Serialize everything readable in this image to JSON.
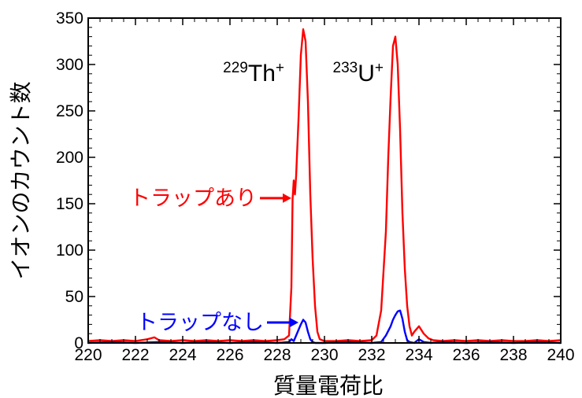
{
  "chart_data": {
    "type": "line",
    "title": "",
    "xlabel": "質量電荷比",
    "ylabel": "イオンのカウント数",
    "xlim": [
      220,
      240
    ],
    "ylim": [
      0,
      350
    ],
    "xticks": [
      "220",
      "222",
      "224",
      "226",
      "228",
      "230",
      "232",
      "234",
      "236",
      "238",
      "240"
    ],
    "yticks": [
      "0",
      "50",
      "100",
      "150",
      "200",
      "250",
      "300",
      "350"
    ],
    "grid": false,
    "peak_labels": [
      {
        "mass": "229",
        "element": "Th",
        "charge": "+",
        "x": 228.3,
        "y": 282
      },
      {
        "mass": "233",
        "element": "U",
        "charge": "+",
        "x": 232.5,
        "y": 282
      }
    ],
    "annotations": [
      {
        "text": "トラップあり",
        "color": "#ff0000",
        "tip_x": 228.6,
        "tip_y": 156
      },
      {
        "text": "トラップなし",
        "color": "#0000ff",
        "tip_x": 228.9,
        "tip_y": 22
      }
    ],
    "series": [
      {
        "name": "トラップあり",
        "color": "#ff0000",
        "x": [
          220.0,
          220.5,
          221.0,
          221.5,
          222.0,
          222.5,
          222.8,
          223.0,
          223.5,
          224.0,
          224.5,
          225.0,
          225.5,
          226.0,
          226.5,
          227.0,
          227.5,
          228.0,
          228.3,
          228.5,
          228.6,
          228.65,
          228.7,
          228.75,
          228.8,
          228.9,
          229.0,
          229.1,
          229.2,
          229.3,
          229.4,
          229.5,
          229.6,
          229.7,
          229.8,
          230.0,
          230.5,
          231.0,
          231.5,
          232.0,
          232.2,
          232.4,
          232.6,
          232.7,
          232.8,
          232.9,
          233.0,
          233.1,
          233.2,
          233.3,
          233.4,
          233.5,
          233.6,
          233.7,
          233.8,
          234.0,
          234.2,
          234.4,
          234.6,
          235.0,
          235.5,
          236.0,
          236.5,
          237.0,
          237.5,
          238.0,
          238.5,
          239.0,
          239.5,
          240.0
        ],
        "y": [
          2,
          3,
          2,
          3,
          2,
          4,
          6,
          3,
          2,
          3,
          2,
          3,
          2,
          3,
          2,
          3,
          2,
          3,
          4,
          8,
          60,
          155,
          175,
          160,
          180,
          240,
          310,
          338,
          325,
          260,
          160,
          90,
          40,
          12,
          4,
          2,
          2,
          3,
          2,
          3,
          8,
          35,
          120,
          200,
          265,
          320,
          330,
          300,
          230,
          140,
          80,
          40,
          18,
          8,
          12,
          18,
          10,
          5,
          3,
          2,
          3,
          2,
          3,
          2,
          3,
          2,
          2,
          3,
          2,
          3
        ]
      },
      {
        "name": "トラップなし",
        "color": "#0000ff",
        "x": [
          220.0,
          221.0,
          222.0,
          223.0,
          224.0,
          225.0,
          226.0,
          227.0,
          228.0,
          228.5,
          228.6,
          228.7,
          228.8,
          228.9,
          229.0,
          229.1,
          229.2,
          229.3,
          229.4,
          229.5,
          229.6,
          230.0,
          231.0,
          232.0,
          232.4,
          232.6,
          232.8,
          232.9,
          233.0,
          233.1,
          233.2,
          233.3,
          233.4,
          233.5,
          233.6,
          233.8,
          234.0,
          234.2,
          234.5,
          235.0,
          236.0,
          237.0,
          238.0,
          239.0,
          240.0
        ],
        "y": [
          0,
          1,
          0,
          1,
          0,
          1,
          0,
          1,
          0,
          1,
          4,
          2,
          8,
          14,
          20,
          25,
          22,
          12,
          4,
          1,
          0,
          0,
          1,
          0,
          1,
          8,
          18,
          25,
          30,
          34,
          35,
          26,
          12,
          3,
          1,
          0,
          4,
          1,
          0,
          1,
          0,
          1,
          0,
          1,
          0
        ]
      }
    ]
  }
}
